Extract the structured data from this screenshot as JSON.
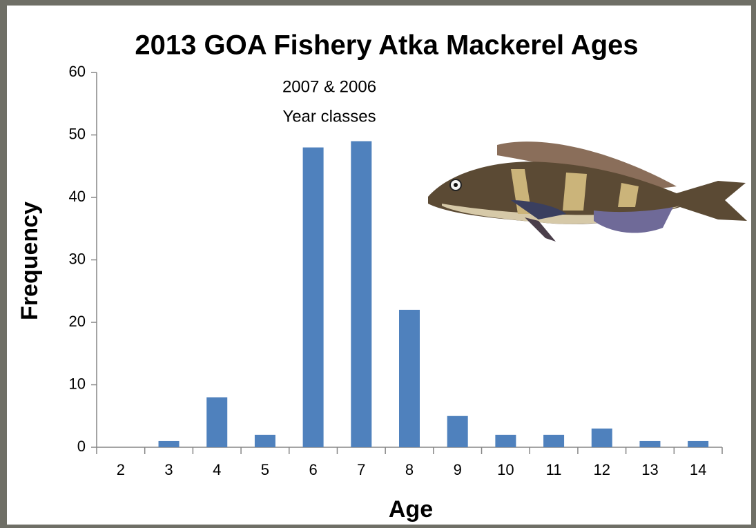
{
  "chart_data": {
    "type": "bar",
    "title": "2013 GOA Fishery Atka Mackerel Ages",
    "annotation": [
      "2007 & 2006",
      "Year classes"
    ],
    "x_label": "Age",
    "y_label": "Frequency",
    "categories": [
      "2",
      "3",
      "4",
      "5",
      "6",
      "7",
      "8",
      "9",
      "10",
      "11",
      "12",
      "13",
      "14"
    ],
    "values": [
      0,
      1,
      8,
      2,
      48,
      49,
      22,
      5,
      2,
      2,
      3,
      1,
      1
    ],
    "color": "#4f81bd",
    "ylim": [
      0,
      60
    ],
    "yticks": [
      0,
      10,
      20,
      30,
      40,
      50,
      60
    ],
    "grid": false
  }
}
